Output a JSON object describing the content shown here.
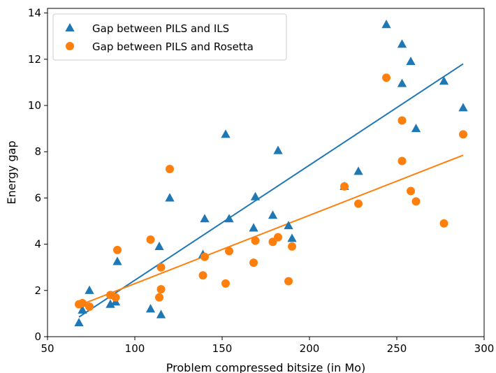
{
  "chart_data": {
    "type": "scatter",
    "title": "",
    "xlabel": "Problem compressed bitsize (in Mo)",
    "ylabel": "Energy gap",
    "xlim": [
      50,
      300
    ],
    "ylim": [
      0,
      14.2
    ],
    "xticks": [
      50,
      100,
      150,
      200,
      250,
      300
    ],
    "yticks": [
      0,
      2,
      4,
      6,
      8,
      10,
      12,
      14
    ],
    "grid": false,
    "legend_position": "top-left",
    "series": [
      {
        "name": "Gap between PILS and ILS",
        "marker": "triangle",
        "color": "#1f77b4",
        "points": [
          [
            68,
            0.6
          ],
          [
            70,
            1.15
          ],
          [
            74,
            2.0
          ],
          [
            86,
            1.4
          ],
          [
            89,
            1.5
          ],
          [
            90,
            3.25
          ],
          [
            109,
            1.2
          ],
          [
            114,
            3.9
          ],
          [
            115,
            0.95
          ],
          [
            120,
            6.0
          ],
          [
            139,
            3.55
          ],
          [
            140,
            5.1
          ],
          [
            152,
            8.75
          ],
          [
            154,
            5.1
          ],
          [
            168,
            4.7
          ],
          [
            169,
            6.05
          ],
          [
            179,
            5.25
          ],
          [
            182,
            8.05
          ],
          [
            188,
            4.8
          ],
          [
            190,
            4.25
          ],
          [
            220,
            6.5
          ],
          [
            228,
            7.15
          ],
          [
            244,
            13.5
          ],
          [
            253,
            12.65
          ],
          [
            253,
            10.95
          ],
          [
            258,
            11.9
          ],
          [
            261,
            9.0
          ],
          [
            277,
            11.05
          ],
          [
            288,
            9.9
          ]
        ],
        "fit_line": [
          [
            68,
            0.85
          ],
          [
            288,
            11.8
          ]
        ]
      },
      {
        "name": "Gap between PILS and Rosetta",
        "marker": "circle",
        "color": "#ff7f0e",
        "points": [
          [
            68,
            1.4
          ],
          [
            70,
            1.45
          ],
          [
            74,
            1.3
          ],
          [
            86,
            1.8
          ],
          [
            89,
            1.7
          ],
          [
            90,
            3.75
          ],
          [
            109,
            4.2
          ],
          [
            114,
            1.7
          ],
          [
            115,
            3.0
          ],
          [
            115,
            2.05
          ],
          [
            120,
            7.25
          ],
          [
            139,
            2.65
          ],
          [
            140,
            3.45
          ],
          [
            152,
            2.3
          ],
          [
            154,
            3.7
          ],
          [
            168,
            3.2
          ],
          [
            169,
            4.15
          ],
          [
            179,
            4.1
          ],
          [
            182,
            4.3
          ],
          [
            188,
            2.4
          ],
          [
            190,
            3.9
          ],
          [
            220,
            6.5
          ],
          [
            228,
            5.75
          ],
          [
            244,
            11.2
          ],
          [
            253,
            9.35
          ],
          [
            253,
            7.6
          ],
          [
            258,
            6.3
          ],
          [
            261,
            5.85
          ],
          [
            277,
            4.9
          ],
          [
            288,
            8.75
          ]
        ],
        "fit_line": [
          [
            68,
            1.35
          ],
          [
            288,
            7.85
          ]
        ]
      }
    ]
  }
}
